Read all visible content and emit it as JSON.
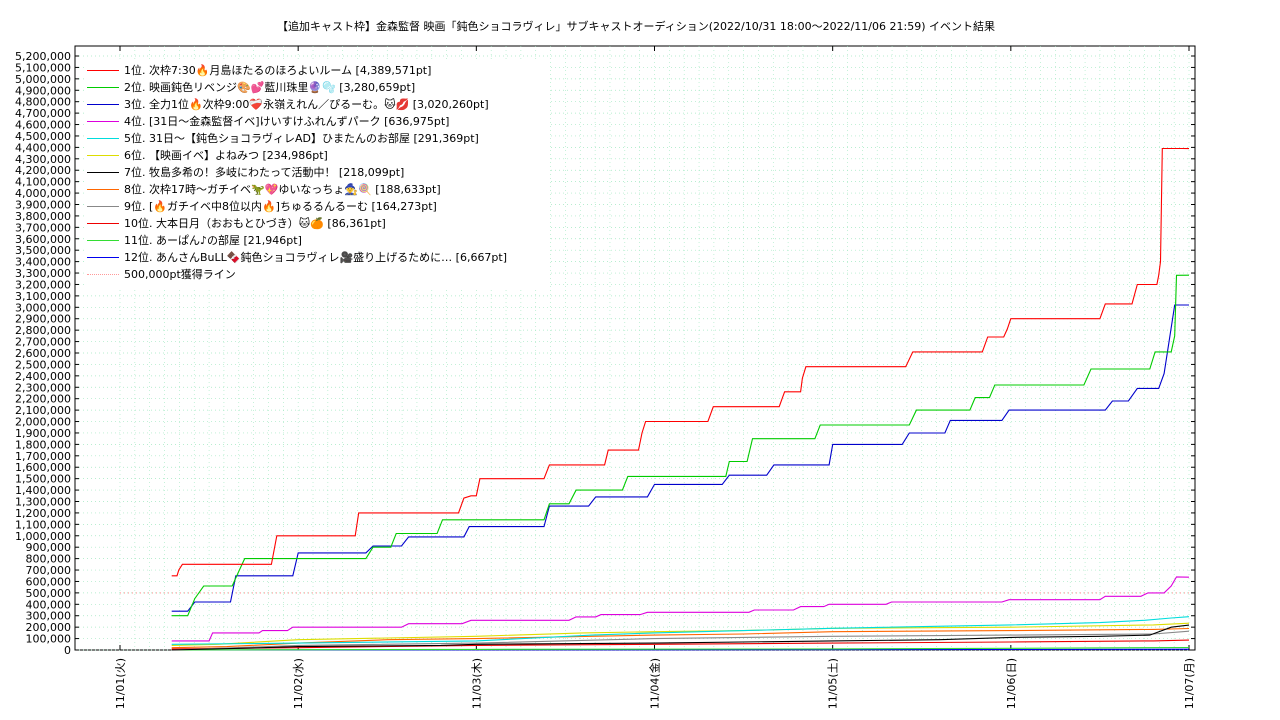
{
  "chart_data": {
    "type": "line",
    "title": "【追加キャスト枠】金森監督 映画「鈍色ショコラヴィレ」サブキャストオーディション(2022/10/31 18:00〜2022/11/06 21:59)",
    "subtitle": "イベント結果",
    "xlabel": "",
    "ylabel": "",
    "ylim": [
      0,
      5200000
    ],
    "y_step": 100000,
    "y_ticks": [
      "0",
      "100,000",
      "200,000",
      "300,000",
      "400,000",
      "500,000",
      "600,000",
      "700,000",
      "800,000",
      "900,000",
      "1,000,000",
      "1,100,000",
      "1,200,000",
      "1,300,000",
      "1,400,000",
      "1,500,000",
      "1,600,000",
      "1,700,000",
      "1,800,000",
      "1,900,000",
      "2,000,000",
      "2,100,000",
      "2,200,000",
      "2,300,000",
      "2,400,000",
      "2,500,000",
      "2,600,000",
      "2,700,000",
      "2,800,000",
      "2,900,000",
      "3,000,000",
      "3,100,000",
      "3,200,000",
      "3,300,000",
      "3,400,000",
      "3,500,000",
      "3,600,000",
      "3,700,000",
      "3,800,000",
      "3,900,000",
      "4,000,000",
      "4,100,000",
      "4,200,000",
      "4,300,000",
      "4,400,000",
      "4,500,000",
      "4,600,000",
      "4,700,000",
      "4,800,000",
      "4,900,000",
      "5,000,000",
      "5,100,000",
      "5,200,000"
    ],
    "xlim": [
      0,
      6.0
    ],
    "x_unit": "days from 11/01",
    "x_ticks": [
      "11/01(火)",
      "11/02(水)",
      "11/03(木)",
      "11/04(金)",
      "11/05(土)",
      "11/06(日)",
      "11/07(月)"
    ],
    "grid": true,
    "legend_position": "top-left",
    "series": [
      {
        "name": "1位. 次枠7:30🔥月島ほたるのほろよいルーム [4,389,571pt]",
        "color": "#ff0000",
        "points": [
          [
            0.29,
            650000
          ],
          [
            0.32,
            650000
          ],
          [
            0.33,
            700000
          ],
          [
            0.35,
            750000
          ],
          [
            0.85,
            750000
          ],
          [
            0.88,
            1000000
          ],
          [
            1.32,
            1000000
          ],
          [
            1.34,
            1200000
          ],
          [
            1.9,
            1200000
          ],
          [
            1.93,
            1330000
          ],
          [
            1.97,
            1350000
          ],
          [
            2.0,
            1350000
          ],
          [
            2.02,
            1500000
          ],
          [
            2.38,
            1500000
          ],
          [
            2.41,
            1620000
          ],
          [
            2.72,
            1620000
          ],
          [
            2.74,
            1750000
          ],
          [
            2.91,
            1750000
          ],
          [
            2.93,
            1900000
          ],
          [
            2.95,
            2000000
          ],
          [
            3.3,
            2000000
          ],
          [
            3.33,
            2130000
          ],
          [
            3.7,
            2130000
          ],
          [
            3.73,
            2260000
          ],
          [
            3.82,
            2260000
          ],
          [
            3.83,
            2380000
          ],
          [
            3.85,
            2480000
          ],
          [
            4.41,
            2480000
          ],
          [
            4.45,
            2610000
          ],
          [
            4.84,
            2610000
          ],
          [
            4.87,
            2740000
          ],
          [
            4.96,
            2740000
          ],
          [
            4.98,
            2810000
          ],
          [
            5.0,
            2900000
          ],
          [
            5.5,
            2900000
          ],
          [
            5.53,
            3030000
          ],
          [
            5.68,
            3030000
          ],
          [
            5.71,
            3200000
          ],
          [
            5.82,
            3200000
          ],
          [
            5.83,
            3280000
          ],
          [
            5.84,
            3400000
          ],
          [
            5.85,
            4390000
          ],
          [
            5.96,
            4390000
          ],
          [
            6.0,
            4389571
          ]
        ]
      },
      {
        "name": "2位. 映画鈍色リベンジ🎨💕藍川珠里🔮🫧 [3,280,659pt]",
        "color": "#00cc00",
        "points": [
          [
            0.29,
            300000
          ],
          [
            0.38,
            300000
          ],
          [
            0.42,
            450000
          ],
          [
            0.47,
            560000
          ],
          [
            0.63,
            560000
          ],
          [
            0.67,
            700000
          ],
          [
            0.7,
            800000
          ],
          [
            1.38,
            800000
          ],
          [
            1.42,
            900000
          ],
          [
            1.52,
            900000
          ],
          [
            1.55,
            1020000
          ],
          [
            1.78,
            1020000
          ],
          [
            1.81,
            1140000
          ],
          [
            2.38,
            1140000
          ],
          [
            2.41,
            1280000
          ],
          [
            2.52,
            1280000
          ],
          [
            2.56,
            1400000
          ],
          [
            2.82,
            1400000
          ],
          [
            2.85,
            1520000
          ],
          [
            3.4,
            1520000
          ],
          [
            3.42,
            1650000
          ],
          [
            3.52,
            1650000
          ],
          [
            3.55,
            1850000
          ],
          [
            3.9,
            1850000
          ],
          [
            3.93,
            1970000
          ],
          [
            4.43,
            1970000
          ],
          [
            4.47,
            2100000
          ],
          [
            4.77,
            2100000
          ],
          [
            4.8,
            2210000
          ],
          [
            4.88,
            2210000
          ],
          [
            4.91,
            2320000
          ],
          [
            5.41,
            2320000
          ],
          [
            5.45,
            2460000
          ],
          [
            5.78,
            2460000
          ],
          [
            5.81,
            2610000
          ],
          [
            5.9,
            2610000
          ],
          [
            5.92,
            2750000
          ],
          [
            5.93,
            3280000
          ],
          [
            6.0,
            3280659
          ]
        ]
      },
      {
        "name": "3位. 全力1位🔥次枠9:00❤️‍🩹永嶺えれん／ぴるーむ。🐱💋 [3,020,260pt]",
        "color": "#0000cc",
        "points": [
          [
            0.29,
            340000
          ],
          [
            0.38,
            340000
          ],
          [
            0.42,
            420000
          ],
          [
            0.62,
            420000
          ],
          [
            0.65,
            650000
          ],
          [
            0.97,
            650000
          ],
          [
            1.0,
            850000
          ],
          [
            1.38,
            850000
          ],
          [
            1.42,
            910000
          ],
          [
            1.58,
            910000
          ],
          [
            1.62,
            990000
          ],
          [
            1.93,
            990000
          ],
          [
            1.96,
            1080000
          ],
          [
            2.38,
            1080000
          ],
          [
            2.41,
            1260000
          ],
          [
            2.63,
            1260000
          ],
          [
            2.67,
            1340000
          ],
          [
            2.96,
            1340000
          ],
          [
            3.0,
            1450000
          ],
          [
            3.38,
            1450000
          ],
          [
            3.42,
            1530000
          ],
          [
            3.63,
            1530000
          ],
          [
            3.67,
            1620000
          ],
          [
            3.98,
            1620000
          ],
          [
            4.0,
            1800000
          ],
          [
            4.39,
            1800000
          ],
          [
            4.43,
            1900000
          ],
          [
            4.63,
            1900000
          ],
          [
            4.66,
            2010000
          ],
          [
            4.95,
            2010000
          ],
          [
            4.99,
            2100000
          ],
          [
            5.53,
            2100000
          ],
          [
            5.57,
            2180000
          ],
          [
            5.66,
            2180000
          ],
          [
            5.71,
            2290000
          ],
          [
            5.83,
            2290000
          ],
          [
            5.86,
            2420000
          ],
          [
            5.92,
            3020000
          ],
          [
            6.0,
            3020260
          ]
        ]
      },
      {
        "name": "4位. [31日〜金森監督イベ]けいすけふれんずパーク [636,975pt]",
        "color": "#dd00dd",
        "points": [
          [
            0.29,
            80000
          ],
          [
            0.5,
            80000
          ],
          [
            0.52,
            150000
          ],
          [
            0.78,
            150000
          ],
          [
            0.8,
            170000
          ],
          [
            0.94,
            170000
          ],
          [
            0.97,
            200000
          ],
          [
            1.58,
            200000
          ],
          [
            1.62,
            230000
          ],
          [
            1.92,
            230000
          ],
          [
            1.97,
            260000
          ],
          [
            2.52,
            260000
          ],
          [
            2.56,
            290000
          ],
          [
            2.67,
            290000
          ],
          [
            2.7,
            310000
          ],
          [
            2.92,
            310000
          ],
          [
            2.96,
            330000
          ],
          [
            3.53,
            330000
          ],
          [
            3.56,
            350000
          ],
          [
            3.78,
            350000
          ],
          [
            3.82,
            380000
          ],
          [
            3.95,
            380000
          ],
          [
            3.98,
            400000
          ],
          [
            4.3,
            400000
          ],
          [
            4.33,
            420000
          ],
          [
            4.95,
            420000
          ],
          [
            4.99,
            440000
          ],
          [
            5.5,
            440000
          ],
          [
            5.53,
            470000
          ],
          [
            5.73,
            470000
          ],
          [
            5.77,
            500000
          ],
          [
            5.86,
            500000
          ],
          [
            5.9,
            560000
          ],
          [
            5.93,
            640000
          ],
          [
            6.0,
            636975
          ]
        ]
      },
      {
        "name": "5位. 31日〜【鈍色ショコラヴィレAD】ひまたんのお部屋 [291,369pt]",
        "color": "#00dddd",
        "points": [
          [
            0.29,
            50000
          ],
          [
            1.0,
            60000
          ],
          [
            2.0,
            80000
          ],
          [
            2.65,
            130000
          ],
          [
            3.0,
            150000
          ],
          [
            3.5,
            170000
          ],
          [
            4.0,
            190000
          ],
          [
            5.0,
            220000
          ],
          [
            5.5,
            240000
          ],
          [
            5.75,
            260000
          ],
          [
            5.9,
            280000
          ],
          [
            6.0,
            291369
          ]
        ]
      },
      {
        "name": "6位. 【映画イベ】よねみつ [234,986pt]",
        "color": "#dddd00",
        "points": [
          [
            0.29,
            40000
          ],
          [
            0.55,
            50000
          ],
          [
            1.0,
            90000
          ],
          [
            2.0,
            120000
          ],
          [
            2.6,
            150000
          ],
          [
            3.0,
            160000
          ],
          [
            3.5,
            170000
          ],
          [
            4.0,
            190000
          ],
          [
            5.0,
            200000
          ],
          [
            5.8,
            220000
          ],
          [
            6.0,
            234986
          ]
        ]
      },
      {
        "name": "7位. 牧島多希の！多岐にわたって活動中！ [218,099pt]",
        "color": "#000000",
        "points": [
          [
            0.29,
            0
          ],
          [
            0.8,
            20000
          ],
          [
            1.0,
            30000
          ],
          [
            1.8,
            40000
          ],
          [
            2.0,
            50000
          ],
          [
            3.0,
            60000
          ],
          [
            4.0,
            80000
          ],
          [
            4.6,
            90000
          ],
          [
            5.0,
            110000
          ],
          [
            5.5,
            120000
          ],
          [
            5.78,
            130000
          ],
          [
            5.9,
            200000
          ],
          [
            6.0,
            218099
          ]
        ]
      },
      {
        "name": "8位. 次枠17時〜ガチイベ🦖💖ゆいなっちょ🧙🍭 [188,633pt]",
        "color": "#ff6600",
        "points": [
          [
            0.29,
            20000
          ],
          [
            0.6,
            30000
          ],
          [
            1.0,
            60000
          ],
          [
            1.5,
            90000
          ],
          [
            2.0,
            100000
          ],
          [
            3.0,
            130000
          ],
          [
            3.5,
            140000
          ],
          [
            4.0,
            160000
          ],
          [
            5.0,
            170000
          ],
          [
            5.8,
            180000
          ],
          [
            6.0,
            188633
          ]
        ]
      },
      {
        "name": "9位. [🔥ガチイベ中8位以内🔥]ちゅるるんるーむ [164,273pt]",
        "color": "#888888",
        "points": [
          [
            0.29,
            0
          ],
          [
            1.0,
            40000
          ],
          [
            2.0,
            60000
          ],
          [
            3.0,
            100000
          ],
          [
            3.5,
            110000
          ],
          [
            4.0,
            120000
          ],
          [
            5.0,
            130000
          ],
          [
            5.8,
            140000
          ],
          [
            6.0,
            164273
          ]
        ]
      },
      {
        "name": "10位. 大本日月（おおもとひづき）🐱🍊 [86,361pt]",
        "color": "#ee0000",
        "points": [
          [
            0.29,
            10000
          ],
          [
            1.0,
            20000
          ],
          [
            2.0,
            40000
          ],
          [
            3.0,
            50000
          ],
          [
            4.0,
            60000
          ],
          [
            5.0,
            70000
          ],
          [
            5.8,
            80000
          ],
          [
            6.0,
            86361
          ]
        ]
      },
      {
        "name": "11位. あーぱん♪の部屋 [21,946pt]",
        "color": "#33dd33",
        "points": [
          [
            0.29,
            0
          ],
          [
            2.0,
            5000
          ],
          [
            4.0,
            10000
          ],
          [
            5.0,
            15000
          ],
          [
            6.0,
            21946
          ]
        ]
      },
      {
        "name": "12位. あんさんBuLL🍫鈍色ショコラヴィレ🎥盛り上げるために… [6,667pt]",
        "color": "#0000ee",
        "points": [
          [
            0.29,
            0
          ],
          [
            3.0,
            2000
          ],
          [
            5.0,
            4000
          ],
          [
            6.0,
            6667
          ]
        ]
      },
      {
        "name": "500,000pt獲得ライン",
        "color": "#ff9999",
        "dashed": true,
        "points": [
          [
            0.0,
            500000
          ],
          [
            6.0,
            500000
          ]
        ]
      }
    ]
  }
}
